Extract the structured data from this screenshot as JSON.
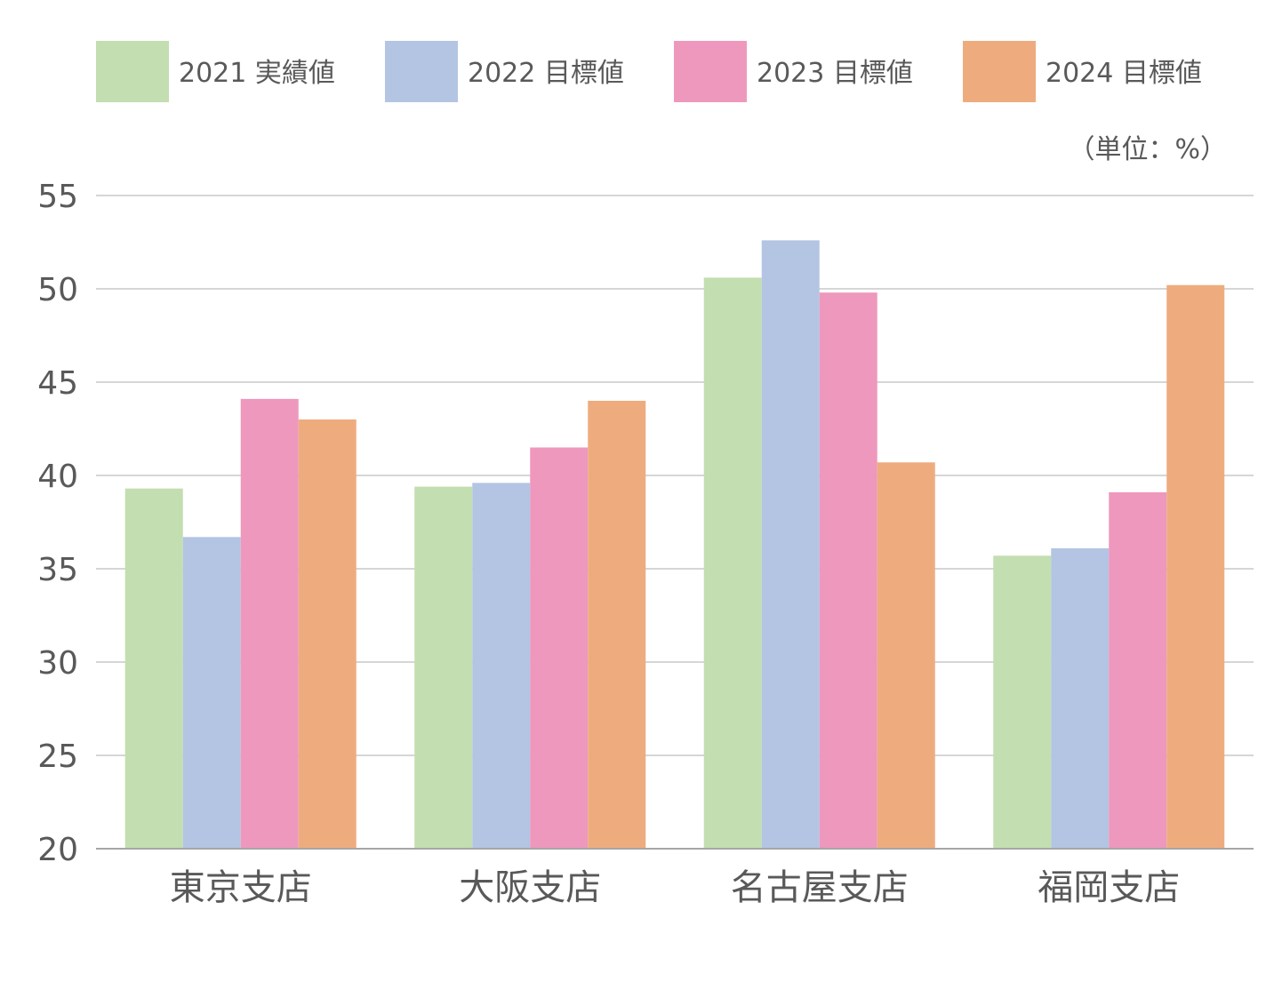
{
  "chart_data": {
    "type": "bar",
    "unit_label": "（単位：%）",
    "categories": [
      "東京支店",
      "大阪支店",
      "名古屋支店",
      "福岡支店"
    ],
    "series": [
      {
        "name": "2021 実績値",
        "color": "#c3deb0",
        "values": [
          39.3,
          39.4,
          50.6,
          35.7
        ]
      },
      {
        "name": "2022 目標値",
        "color": "#b3c5e3",
        "values": [
          36.7,
          39.6,
          52.6,
          36.1
        ]
      },
      {
        "name": "2023 目標値",
        "color": "#ee98bd",
        "values": [
          44.1,
          41.5,
          49.8,
          39.1
        ]
      },
      {
        "name": "2024 目標値",
        "color": "#eeac7e",
        "values": [
          43.0,
          44.0,
          40.7,
          50.2
        ]
      }
    ],
    "ylim": [
      20,
      55
    ],
    "yticks": [
      20,
      25,
      30,
      35,
      40,
      45,
      50,
      55
    ],
    "grid": true,
    "legend_position": "top"
  }
}
